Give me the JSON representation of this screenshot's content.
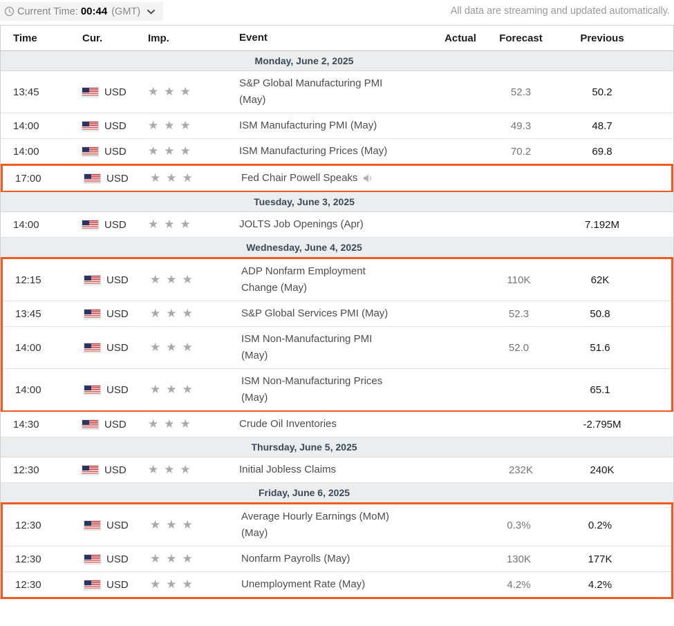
{
  "topbar": {
    "current_time_label": "Current Time:",
    "current_time_value": "00:44",
    "timezone": "(GMT)",
    "streaming_note": "All data are streaming and updated automatically."
  },
  "icons": {
    "clock-icon": "outlined clock glyph (svg circle + hands)",
    "chevron-down-icon": "▾",
    "us-flag-icon": "css-drawn US flag (stripes + blue canton)",
    "importance-star-icon": "★",
    "speaker-icon": "gray speaker with sound wave (svg)"
  },
  "colors": {
    "highlight_border": "#ee5b22",
    "day_separator_bg": "#ebedee",
    "star_gray": "#a7a9ac"
  },
  "table": {
    "headers": {
      "time": "Time",
      "cur": "Cur.",
      "imp": "Imp.",
      "event": "Event",
      "actual": "Actual",
      "forecast": "Forecast",
      "previous": "Previous"
    },
    "days": [
      {
        "label": "Monday, June 2, 2025",
        "events": [
          {
            "time": "13:45",
            "currency": "USD",
            "flag": "us-flag-icon",
            "importance": 3,
            "event": "S&P Global Manufacturing PMI\n(May)",
            "speaker": false,
            "actual": "",
            "forecast": "52.3",
            "previous": "50.2",
            "highlighted": false
          },
          {
            "time": "14:00",
            "currency": "USD",
            "flag": "us-flag-icon",
            "importance": 3,
            "event": "ISM Manufacturing PMI (May)",
            "speaker": false,
            "actual": "",
            "forecast": "49.3",
            "previous": "48.7",
            "highlighted": false
          },
          {
            "time": "14:00",
            "currency": "USD",
            "flag": "us-flag-icon",
            "importance": 3,
            "event": "ISM Manufacturing Prices (May)",
            "speaker": false,
            "actual": "",
            "forecast": "70.2",
            "previous": "69.8",
            "highlighted": false
          },
          {
            "time": "17:00",
            "currency": "USD",
            "flag": "us-flag-icon",
            "importance": 3,
            "event": "Fed Chair Powell Speaks",
            "speaker": true,
            "actual": "",
            "forecast": "",
            "previous": "",
            "highlighted": true
          }
        ]
      },
      {
        "label": "Tuesday, June 3, 2025",
        "events": [
          {
            "time": "14:00",
            "currency": "USD",
            "flag": "us-flag-icon",
            "importance": 3,
            "event": "JOLTS Job Openings (Apr)",
            "speaker": false,
            "actual": "",
            "forecast": "",
            "previous": "7.192M",
            "highlighted": false
          }
        ]
      },
      {
        "label": "Wednesday, June 4, 2025",
        "events": [
          {
            "time": "12:15",
            "currency": "USD",
            "flag": "us-flag-icon",
            "importance": 3,
            "event": "ADP Nonfarm Employment\nChange (May)",
            "speaker": false,
            "actual": "",
            "forecast": "110K",
            "previous": "62K",
            "highlighted": true
          },
          {
            "time": "13:45",
            "currency": "USD",
            "flag": "us-flag-icon",
            "importance": 3,
            "event": "S&P Global Services PMI (May)",
            "speaker": false,
            "actual": "",
            "forecast": "52.3",
            "previous": "50.8",
            "highlighted": true
          },
          {
            "time": "14:00",
            "currency": "USD",
            "flag": "us-flag-icon",
            "importance": 3,
            "event": "ISM Non-Manufacturing PMI\n(May)",
            "speaker": false,
            "actual": "",
            "forecast": "52.0",
            "previous": "51.6",
            "highlighted": true
          },
          {
            "time": "14:00",
            "currency": "USD",
            "flag": "us-flag-icon",
            "importance": 3,
            "event": "ISM Non-Manufacturing Prices\n(May)",
            "speaker": false,
            "actual": "",
            "forecast": "",
            "previous": "65.1",
            "highlighted": true
          },
          {
            "time": "14:30",
            "currency": "USD",
            "flag": "us-flag-icon",
            "importance": 3,
            "event": "Crude Oil Inventories",
            "speaker": false,
            "actual": "",
            "forecast": "",
            "previous": "-2.795M",
            "highlighted": false
          }
        ]
      },
      {
        "label": "Thursday, June 5, 2025",
        "events": [
          {
            "time": "12:30",
            "currency": "USD",
            "flag": "us-flag-icon",
            "importance": 3,
            "event": "Initial Jobless Claims",
            "speaker": false,
            "actual": "",
            "forecast": "232K",
            "previous": "240K",
            "highlighted": false
          }
        ]
      },
      {
        "label": "Friday, June 6, 2025",
        "events": [
          {
            "time": "12:30",
            "currency": "USD",
            "flag": "us-flag-icon",
            "importance": 3,
            "event": "Average Hourly Earnings (MoM)\n(May)",
            "speaker": false,
            "actual": "",
            "forecast": "0.3%",
            "previous": "0.2%",
            "highlighted": true
          },
          {
            "time": "12:30",
            "currency": "USD",
            "flag": "us-flag-icon",
            "importance": 3,
            "event": "Nonfarm Payrolls (May)",
            "speaker": false,
            "actual": "",
            "forecast": "130K",
            "previous": "177K",
            "highlighted": true
          },
          {
            "time": "12:30",
            "currency": "USD",
            "flag": "us-flag-icon",
            "importance": 3,
            "event": "Unemployment Rate (May)",
            "speaker": false,
            "actual": "",
            "forecast": "4.2%",
            "previous": "4.2%",
            "highlighted": true
          }
        ]
      }
    ]
  }
}
